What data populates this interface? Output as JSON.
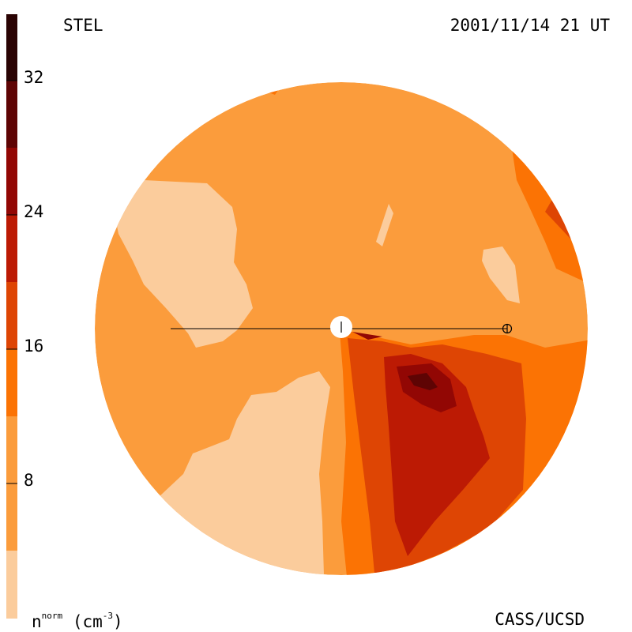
{
  "header": {
    "source": "STEL",
    "timestamp": "2001/11/14 21 UT"
  },
  "footer": {
    "credit": "CASS/UCSD",
    "unit_base": "n",
    "unit_sup": "norm",
    "unit_paren": "(cm",
    "unit_exp": "-3",
    "unit_close": ")"
  },
  "colorbar": {
    "ticks": [
      "8",
      "16",
      "24",
      "32"
    ],
    "levels": [
      "#FBCC9C",
      "#FB9C3C",
      "#FB7304",
      "#DE4504",
      "#BC1A04",
      "#920704",
      "#5E0404",
      "#2A0303"
    ]
  },
  "map": {
    "sun_marker": "sun",
    "earth_marker": "earth"
  }
}
